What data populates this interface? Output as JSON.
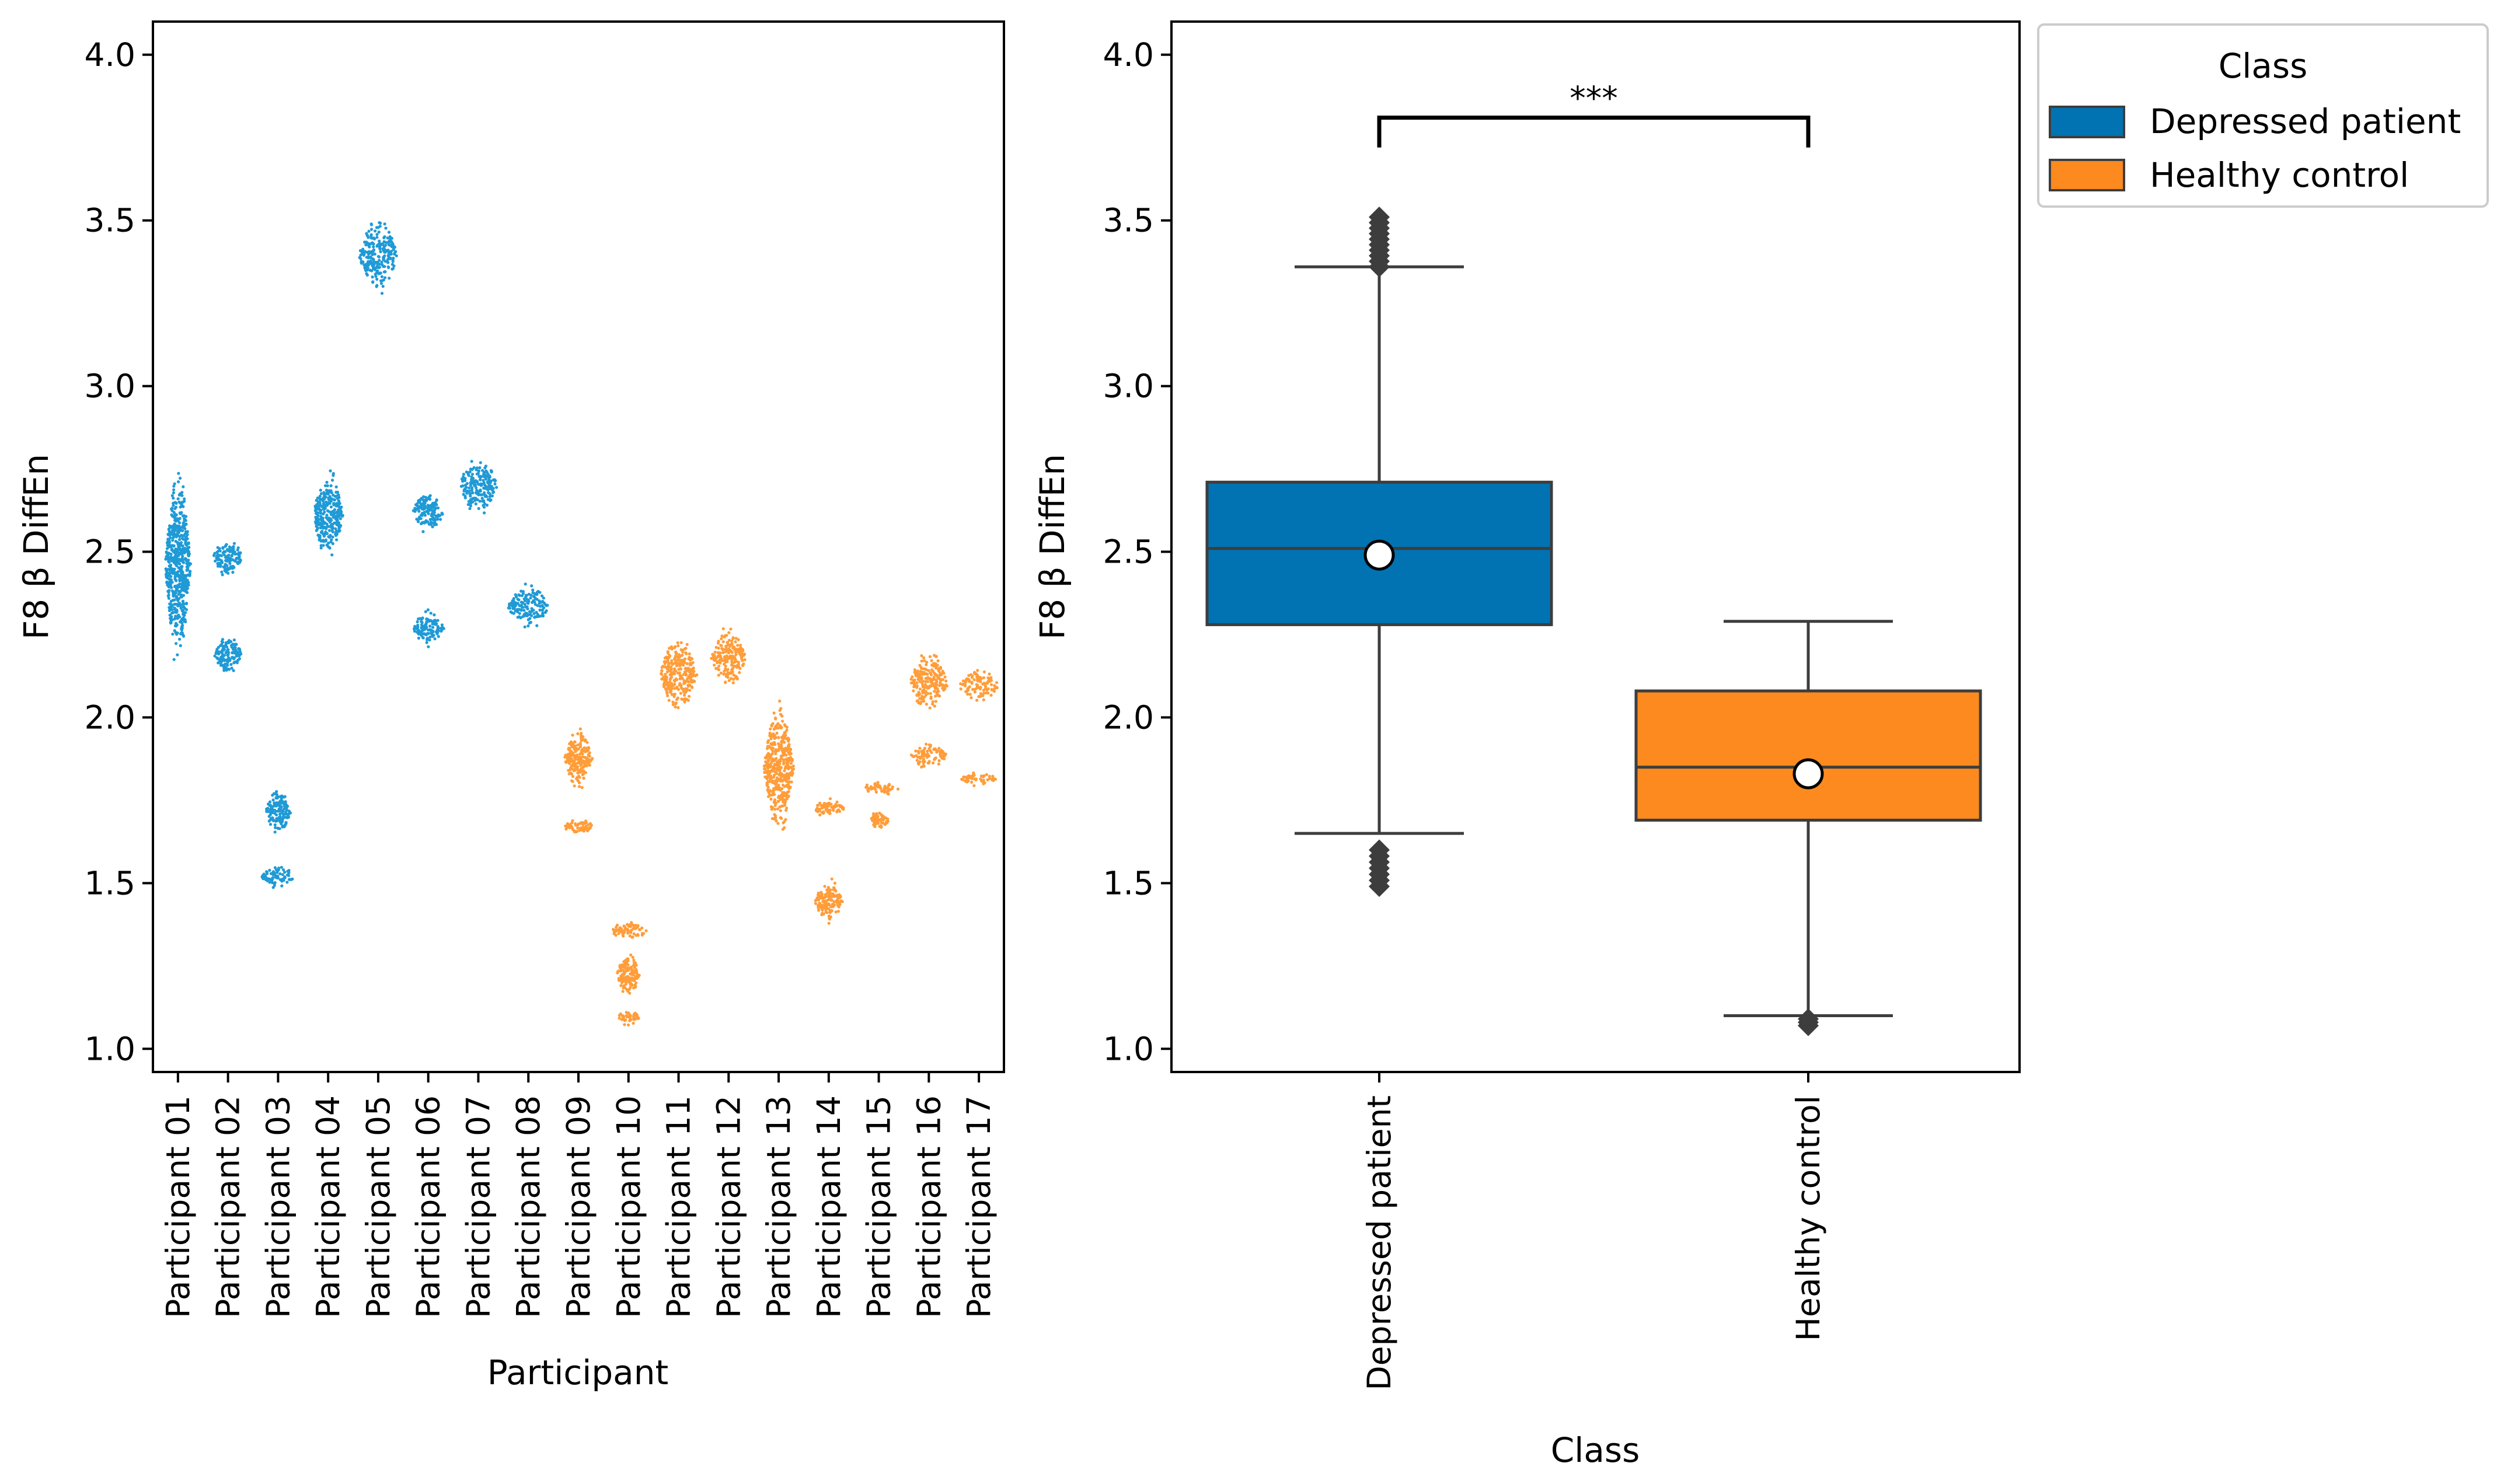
{
  "colors": {
    "depressed": "#1f9ad6",
    "healthy": "#ff9d3a",
    "depressed_box": "#0173b2",
    "healthy_box": "#fd8a1e",
    "edge": "#3d3d3d"
  },
  "chart_data": [
    {
      "type": "scatter",
      "subtype": "swarm",
      "title": "",
      "xlabel": "Participant",
      "ylabel": "F8  β  DiffEn",
      "ylim": [
        0.93,
        4.1
      ],
      "yticks": [
        "1.0",
        "1.5",
        "2.0",
        "2.5",
        "3.0",
        "3.5",
        "4.0"
      ],
      "categories": [
        "Participant 01",
        "Participant 02",
        "Participant 03",
        "Participant 04",
        "Participant 05",
        "Participant 06",
        "Participant 07",
        "Participant 08",
        "Participant 09",
        "Participant 10",
        "Participant 11",
        "Participant 12",
        "Participant 13",
        "Participant 14",
        "Participant 15",
        "Participant 16",
        "Participant 17"
      ],
      "series": [
        {
          "name": "Depressed patient",
          "participants": [
            "Participant 01",
            "Participant 02",
            "Participant 03",
            "Participant 04",
            "Participant 05",
            "Participant 06",
            "Participant 07",
            "Participant 08"
          ]
        },
        {
          "name": "Healthy control",
          "participants": [
            "Participant 09",
            "Participant 10",
            "Participant 11",
            "Participant 12",
            "Participant 13",
            "Participant 14",
            "Participant 15",
            "Participant 16",
            "Participant 17"
          ]
        }
      ],
      "clusters": [
        {
          "p": 0,
          "g": 0,
          "ranges": [
            [
              2.15,
              2.77,
              22
            ]
          ]
        },
        {
          "p": 1,
          "g": 0,
          "ranges": [
            [
              2.42,
              2.55,
              26
            ],
            [
              2.12,
              2.26,
              24
            ]
          ]
        },
        {
          "p": 2,
          "g": 0,
          "ranges": [
            [
              1.64,
              1.79,
              22
            ],
            [
              1.48,
              1.56,
              30
            ]
          ]
        },
        {
          "p": 3,
          "g": 0,
          "ranges": [
            [
              2.46,
              2.76,
              26
            ]
          ]
        },
        {
          "p": 4,
          "g": 0,
          "ranges": [
            [
              3.27,
              3.52,
              34
            ]
          ]
        },
        {
          "p": 5,
          "g": 0,
          "ranges": [
            [
              2.55,
              2.69,
              28
            ],
            [
              2.21,
              2.33,
              28
            ]
          ]
        },
        {
          "p": 6,
          "g": 0,
          "ranges": [
            [
              2.6,
              2.8,
              34
            ]
          ]
        },
        {
          "p": 7,
          "g": 0,
          "ranges": [
            [
              2.26,
              2.41,
              36
            ]
          ]
        },
        {
          "p": 8,
          "g": 1,
          "ranges": [
            [
              1.77,
              1.98,
              24
            ],
            [
              1.64,
              1.7,
              30
            ]
          ]
        },
        {
          "p": 9,
          "g": 1,
          "ranges": [
            [
              1.32,
              1.39,
              32
            ],
            [
              1.15,
              1.3,
              20
            ],
            [
              1.07,
              1.12,
              20
            ]
          ]
        },
        {
          "p": 10,
          "g": 1,
          "ranges": [
            [
              1.99,
              2.27,
              32
            ]
          ]
        },
        {
          "p": 11,
          "g": 1,
          "ranges": [
            [
              2.08,
              2.28,
              30
            ]
          ]
        },
        {
          "p": 12,
          "g": 1,
          "ranges": [
            [
              1.63,
              2.06,
              26
            ]
          ]
        },
        {
          "p": 13,
          "g": 1,
          "ranges": [
            [
              1.69,
              1.76,
              28
            ],
            [
              1.37,
              1.52,
              24
            ]
          ]
        },
        {
          "p": 14,
          "g": 1,
          "ranges": [
            [
              1.76,
              1.81,
              34
            ],
            [
              1.66,
              1.72,
              18
            ]
          ]
        },
        {
          "p": 15,
          "g": 1,
          "ranges": [
            [
              2.0,
              2.21,
              34
            ],
            [
              1.84,
              1.93,
              32
            ]
          ]
        },
        {
          "p": 16,
          "g": 1,
          "ranges": [
            [
              2.04,
              2.15,
              36
            ],
            [
              1.79,
              1.84,
              32
            ]
          ]
        }
      ]
    },
    {
      "type": "box",
      "title": "",
      "xlabel": "Class",
      "ylabel": "F8  β  DiffEn",
      "ylim": [
        0.93,
        4.1
      ],
      "yticks": [
        "1.0",
        "1.5",
        "2.0",
        "2.5",
        "3.0",
        "3.5",
        "4.0"
      ],
      "categories": [
        "Depressed patient",
        "Healthy control"
      ],
      "boxes": [
        {
          "name": "Depressed patient",
          "q1": 2.28,
          "median": 2.51,
          "q3": 2.71,
          "whisker_low": 1.65,
          "whisker_high": 3.36,
          "mean": 2.49,
          "outliers_low": [
            1.49,
            1.6
          ],
          "outliers_high": [
            3.36,
            3.51
          ]
        },
        {
          "name": "Healthy control",
          "q1": 1.69,
          "median": 1.85,
          "q3": 2.08,
          "whisker_low": 1.1,
          "whisker_high": 2.29,
          "mean": 1.83,
          "outliers_low": [
            1.07,
            1.09
          ],
          "outliers_high": []
        }
      ],
      "annotation": {
        "text": "***",
        "between": [
          "Depressed patient",
          "Healthy control"
        ],
        "bracket_y": 3.81,
        "bracket_drop": 0.09
      },
      "legend": {
        "title": "Class",
        "entries": [
          "Depressed patient",
          "Healthy control"
        ],
        "placement": "outside upper right"
      }
    }
  ]
}
